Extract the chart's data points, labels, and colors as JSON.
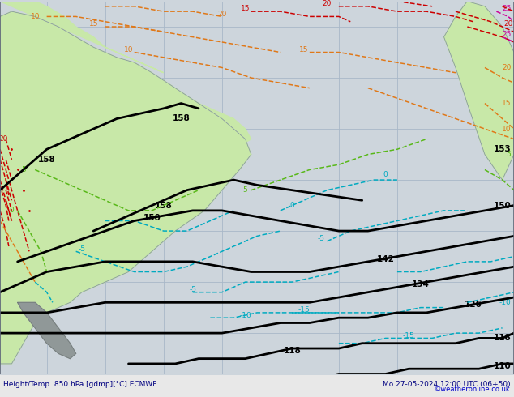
{
  "title_left": "Height/Temp. 850 hPa [gdmp][°C] ECMWF",
  "title_right": "Mo 27-05-2024 12:00 UTC (06+50)",
  "watermark": "©weatheronline.co.uk",
  "figsize": [
    6.34,
    4.9
  ],
  "dpi": 100,
  "bg_ocean": "#cdd5dc",
  "bg_land": "#c8e8a8",
  "bg_land2": "#b8d898",
  "grid_color": "#a8b8c8",
  "col_black": "#000000",
  "col_red": "#cc0000",
  "col_orange": "#e07818",
  "col_cyan": "#00aac0",
  "col_green": "#58b818",
  "col_magenta": "#cc0099",
  "col_text": "#000080",
  "col_watermark": "#0000cc",
  "col_border": "#606878",
  "lw_thick": 2.0,
  "lw_thin": 1.1
}
